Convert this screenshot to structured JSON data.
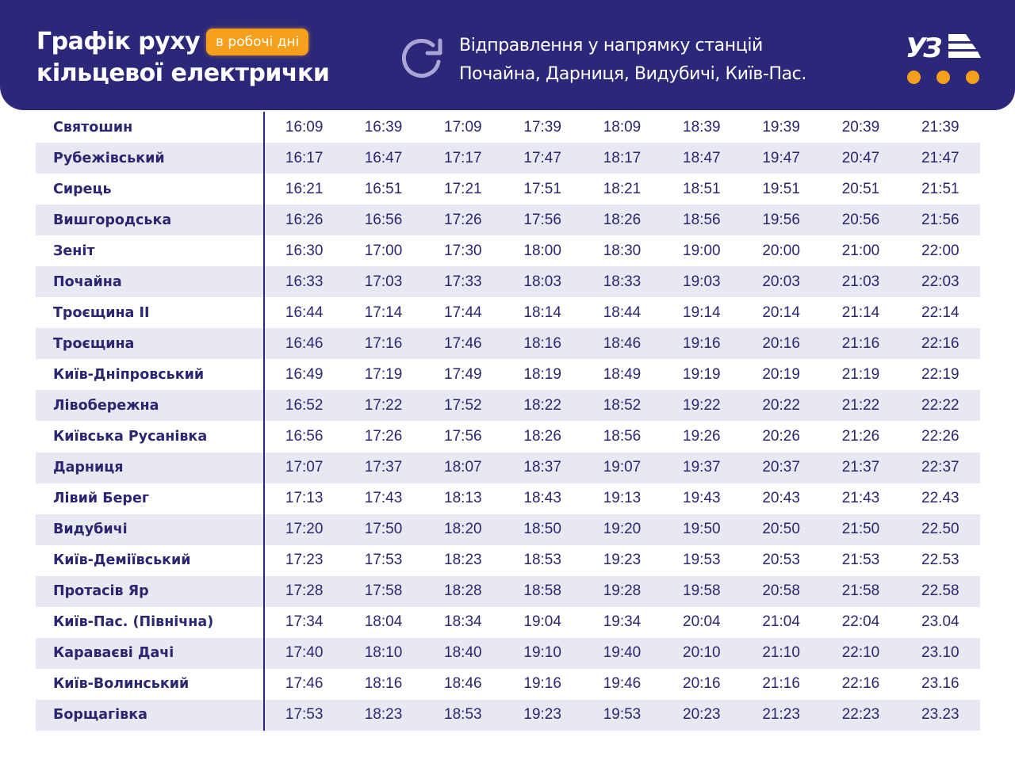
{
  "header": {
    "title_line1": "Графік руху",
    "title_line2": "кільцевої електрички",
    "badge": "в робочі дні",
    "direction_icon": "refresh-icon",
    "direction_line1": "Відправлення у напрямку станцій",
    "direction_line2": "Почайна, Дарниця, Видубичі, Київ-Пас.",
    "logo_text": "УЗ",
    "logo_icon": "uz-logo-icon"
  },
  "colors": {
    "header_bg": "#2c2879",
    "accent_orange": "#f59f1c",
    "text_dark": "#2a2770",
    "stripe": "#e8e8f2"
  },
  "schedule": {
    "rows": [
      {
        "station": "Святошин",
        "times": [
          "16:09",
          "16:39",
          "17:09",
          "17:39",
          "18:09",
          "18:39",
          "19:39",
          "20:39",
          "21:39"
        ]
      },
      {
        "station": "Рубежівський",
        "times": [
          "16:17",
          "16:47",
          "17:17",
          "17:47",
          "18:17",
          "18:47",
          "19:47",
          "20:47",
          "21:47"
        ]
      },
      {
        "station": "Сирець",
        "times": [
          "16:21",
          "16:51",
          "17:21",
          "17:51",
          "18:21",
          "18:51",
          "19:51",
          "20:51",
          "21:51"
        ]
      },
      {
        "station": "Вишгородська",
        "times": [
          "16:26",
          "16:56",
          "17:26",
          "17:56",
          "18:26",
          "18:56",
          "19:56",
          "20:56",
          "21:56"
        ]
      },
      {
        "station": "Зеніт",
        "times": [
          "16:30",
          "17:00",
          "17:30",
          "18:00",
          "18:30",
          "19:00",
          "20:00",
          "21:00",
          "22:00"
        ]
      },
      {
        "station": "Почайна",
        "times": [
          "16:33",
          "17:03",
          "17:33",
          "18:03",
          "18:33",
          "19:03",
          "20:03",
          "21:03",
          "22:03"
        ]
      },
      {
        "station": "Троєщина II",
        "times": [
          "16:44",
          "17:14",
          "17:44",
          "18:14",
          "18:44",
          "19:14",
          "20:14",
          "21:14",
          "22:14"
        ]
      },
      {
        "station": "Троєщина",
        "times": [
          "16:46",
          "17:16",
          "17:46",
          "18:16",
          "18:46",
          "19:16",
          "20:16",
          "21:16",
          "22:16"
        ]
      },
      {
        "station": "Київ-Дніпровський",
        "times": [
          "16:49",
          "17:19",
          "17:49",
          "18:19",
          "18:49",
          "19:19",
          "20:19",
          "21:19",
          "22:19"
        ]
      },
      {
        "station": "Лівобережна",
        "times": [
          "16:52",
          "17:22",
          "17:52",
          "18:22",
          "18:52",
          "19:22",
          "20:22",
          "21:22",
          "22:22"
        ]
      },
      {
        "station": "Київська Русанівка",
        "times": [
          "16:56",
          "17:26",
          "17:56",
          "18:26",
          "18:56",
          "19:26",
          "20:26",
          "21:26",
          "22:26"
        ]
      },
      {
        "station": "Дарниця",
        "times": [
          "17:07",
          "17:37",
          "18:07",
          "18:37",
          "19:07",
          "19:37",
          "20:37",
          "21:37",
          "22:37"
        ]
      },
      {
        "station": "Лівий Берег",
        "times": [
          "17:13",
          "17:43",
          "18:13",
          "18:43",
          "19:13",
          "19:43",
          "20:43",
          "21:43",
          "22.43"
        ]
      },
      {
        "station": "Видубичі",
        "times": [
          "17:20",
          "17:50",
          "18:20",
          "18:50",
          "19:20",
          "19:50",
          "20:50",
          "21:50",
          "22.50"
        ]
      },
      {
        "station": "Київ-Деміївський",
        "times": [
          "17:23",
          "17:53",
          "18:23",
          "18:53",
          "19:23",
          "19:53",
          "20:53",
          "21:53",
          "22.53"
        ]
      },
      {
        "station": "Протасів Яр",
        "times": [
          "17:28",
          "17:58",
          "18:28",
          "18:58",
          "19:28",
          "19:58",
          "20:58",
          "21:58",
          "22.58"
        ]
      },
      {
        "station": "Київ-Пас. (Північна)",
        "times": [
          "17:34",
          "18:04",
          "18:34",
          "19:04",
          "19:34",
          "20:04",
          "21:04",
          "22:04",
          "23.04"
        ]
      },
      {
        "station": "Караваєві Дачі",
        "times": [
          "17:40",
          "18:10",
          "18:40",
          "19:10",
          "19:40",
          "20:10",
          "21:10",
          "22:10",
          "23.10"
        ]
      },
      {
        "station": "Київ-Волинський",
        "times": [
          "17:46",
          "18:16",
          "18:46",
          "19:16",
          "19:46",
          "20:16",
          "21:16",
          "22:16",
          "23.16"
        ]
      },
      {
        "station": "Борщагівка",
        "times": [
          "17:53",
          "18:23",
          "18:53",
          "19:23",
          "19:53",
          "20:23",
          "21:23",
          "22:23",
          "23.23"
        ]
      }
    ]
  }
}
